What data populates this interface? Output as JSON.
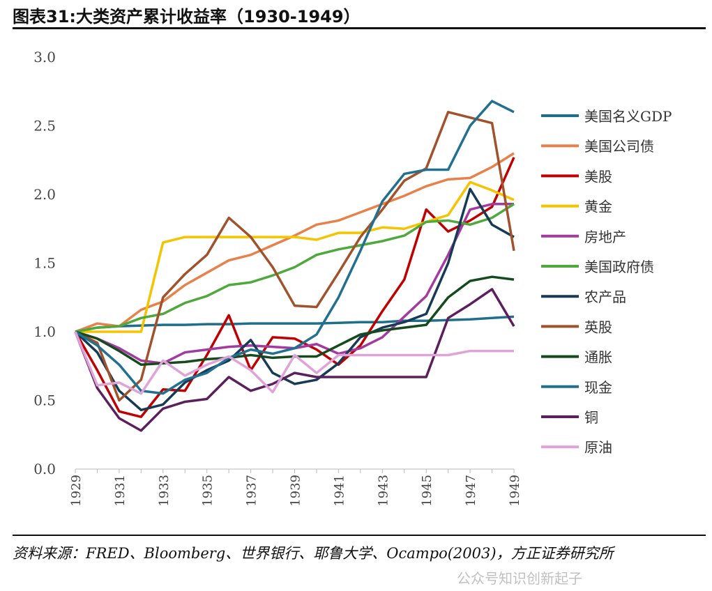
{
  "title": "图表31:大类资产累计收益率（1930-1949）",
  "source": "资料来源：FRED、Bloomberg、世界银行、耶鲁大学、Ocampo(2003)，方正证券研究所",
  "watermark": "公众号知识创新起子",
  "chart_data": {
    "type": "line",
    "title": "",
    "xlabel": "",
    "ylabel": "",
    "x": [
      1929,
      1930,
      1931,
      1932,
      1933,
      1934,
      1935,
      1936,
      1937,
      1938,
      1939,
      1940,
      1941,
      1942,
      1943,
      1944,
      1945,
      1946,
      1947,
      1948,
      1949
    ],
    "xticks": [
      "1929",
      "1931",
      "1933",
      "1935",
      "1937",
      "1939",
      "1941",
      "1943",
      "1945",
      "1947",
      "1949"
    ],
    "yticks": [
      "0.0",
      "0.5",
      "1.0",
      "1.5",
      "2.0",
      "2.5",
      "3.0"
    ],
    "ylim": [
      0,
      3
    ],
    "grid": false,
    "legend_position": "right",
    "series": [
      {
        "name": "美国名义GDP",
        "color": "#1f6e8c",
        "values": [
          1.0,
          1.03,
          1.04,
          1.045,
          1.05,
          1.05,
          1.055,
          1.055,
          1.06,
          1.06,
          1.06,
          1.06,
          1.065,
          1.07,
          1.07,
          1.08,
          1.08,
          1.085,
          1.09,
          1.1,
          1.11
        ]
      },
      {
        "name": "美国公司债",
        "color": "#e8804a",
        "values": [
          1.0,
          1.06,
          1.04,
          1.16,
          1.22,
          1.34,
          1.43,
          1.52,
          1.56,
          1.63,
          1.7,
          1.78,
          1.81,
          1.87,
          1.93,
          1.99,
          2.06,
          2.11,
          2.12,
          2.2,
          2.3
        ]
      },
      {
        "name": "美股",
        "color": "#c00000",
        "values": [
          1.0,
          0.72,
          0.42,
          0.38,
          0.58,
          0.57,
          0.83,
          1.12,
          0.72,
          0.96,
          0.95,
          0.87,
          0.76,
          0.9,
          1.15,
          1.38,
          1.89,
          1.73,
          1.81,
          1.91,
          2.27
        ]
      },
      {
        "name": "黄金",
        "color": "#f5c400",
        "values": [
          1.0,
          1.0,
          1.0,
          1.0,
          1.65,
          1.69,
          1.69,
          1.69,
          1.69,
          1.69,
          1.69,
          1.67,
          1.72,
          1.72,
          1.76,
          1.75,
          1.8,
          1.85,
          2.09,
          2.03,
          1.96
        ]
      },
      {
        "name": "房地产",
        "color": "#a33aa0",
        "values": [
          1.0,
          0.95,
          0.88,
          0.79,
          0.77,
          0.85,
          0.87,
          0.89,
          0.9,
          0.89,
          0.88,
          0.91,
          0.84,
          0.88,
          0.96,
          1.11,
          1.26,
          1.56,
          1.89,
          1.93,
          1.93
        ]
      },
      {
        "name": "美国政府债",
        "color": "#4ea83c",
        "values": [
          1.0,
          1.03,
          1.04,
          1.1,
          1.13,
          1.21,
          1.26,
          1.34,
          1.36,
          1.41,
          1.47,
          1.56,
          1.6,
          1.63,
          1.66,
          1.7,
          1.8,
          1.81,
          1.78,
          1.83,
          1.93
        ]
      },
      {
        "name": "农产品",
        "color": "#173a55",
        "values": [
          1.0,
          0.85,
          0.57,
          0.43,
          0.47,
          0.63,
          0.72,
          0.79,
          0.94,
          0.7,
          0.62,
          0.65,
          0.77,
          0.96,
          1.03,
          1.07,
          1.13,
          1.5,
          2.04,
          1.78,
          1.69
        ]
      },
      {
        "name": "英股",
        "color": "#a0522d",
        "values": [
          1.0,
          0.92,
          0.5,
          0.65,
          1.25,
          1.42,
          1.56,
          1.83,
          1.69,
          1.47,
          1.19,
          1.18,
          1.43,
          1.69,
          1.89,
          2.1,
          2.19,
          2.6,
          2.56,
          2.52,
          1.59
        ]
      },
      {
        "name": "通胀",
        "color": "#154a1e",
        "values": [
          1.0,
          0.95,
          0.86,
          0.76,
          0.77,
          0.78,
          0.8,
          0.81,
          0.83,
          0.81,
          0.82,
          0.82,
          0.9,
          0.98,
          1.01,
          1.03,
          1.05,
          1.25,
          1.37,
          1.4,
          1.38
        ]
      },
      {
        "name": "现金",
        "color": "#21708f",
        "values": [
          1.0,
          0.9,
          0.76,
          0.57,
          0.55,
          0.65,
          0.7,
          0.81,
          0.87,
          0.84,
          0.88,
          0.98,
          1.25,
          1.59,
          1.95,
          2.15,
          2.18,
          2.18,
          2.5,
          2.68,
          2.6
        ]
      },
      {
        "name": "铜",
        "color": "#5c1f5e",
        "values": [
          1.0,
          0.59,
          0.37,
          0.28,
          0.44,
          0.49,
          0.51,
          0.67,
          0.57,
          0.62,
          0.7,
          0.67,
          0.67,
          0.67,
          0.67,
          0.67,
          0.67,
          1.1,
          1.2,
          1.31,
          1.04
        ]
      },
      {
        "name": "原油",
        "color": "#e0a3d8",
        "values": [
          1.0,
          0.61,
          0.63,
          0.55,
          0.79,
          0.68,
          0.76,
          0.82,
          0.72,
          0.56,
          0.83,
          0.7,
          0.83,
          0.83,
          0.83,
          0.83,
          0.83,
          0.83,
          0.86,
          0.86,
          0.86
        ]
      }
    ]
  }
}
